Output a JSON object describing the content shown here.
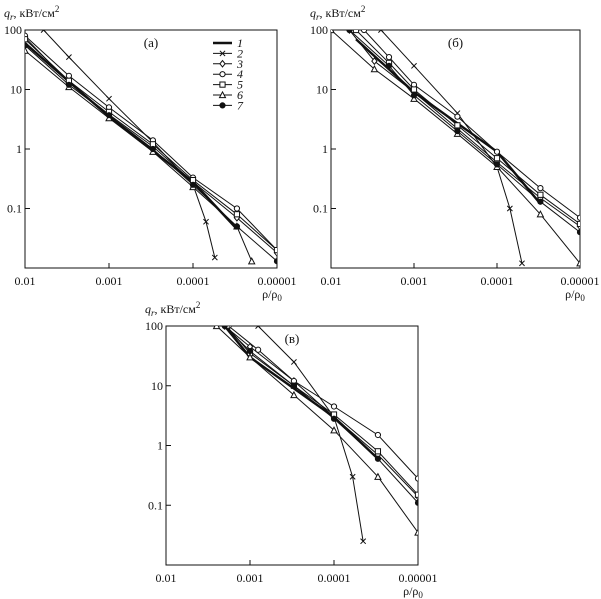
{
  "figure": {
    "y_axis_label_main": "q",
    "y_axis_label_sub": "r",
    "y_axis_label_unit": ", кВт/см",
    "y_axis_label_sup": "2",
    "x_axis_label": "ρ/ρ",
    "x_axis_label_sub": "0"
  },
  "legend": [
    "1",
    "2",
    "3",
    "4",
    "5",
    "6",
    "7"
  ],
  "chart_data": [
    {
      "type": "line",
      "panel": "(а)",
      "x_scale": "log (reversed)",
      "y_scale": "log",
      "xlim": [
        0.01,
        1e-05
      ],
      "ylim": [
        0.01,
        100
      ],
      "x_ticks": [
        "0.01",
        "0.001",
        "0.0001",
        "0.00001"
      ],
      "y_ticks": [
        "100",
        "10",
        "1",
        "0.1"
      ],
      "series": [
        {
          "name": "1",
          "marker": "none",
          "x": [
            0.01,
            0.001,
            0.0001,
            3e-05
          ],
          "y": [
            60,
            3.5,
            0.28,
            0.045
          ]
        },
        {
          "name": "2",
          "marker": "x",
          "x": [
            0.006,
            0.003,
            0.001,
            0.0003,
            0.0001,
            7e-05,
            5.5e-05
          ],
          "y": [
            100,
            35,
            7,
            1.3,
            0.25,
            0.06,
            0.015
          ]
        },
        {
          "name": "3",
          "marker": "diamond",
          "x": [
            0.01,
            0.003,
            0.001,
            0.0003,
            0.0001,
            3e-05,
            1e-05
          ],
          "y": [
            75,
            13,
            3.8,
            1.1,
            0.28,
            0.07,
            0.018
          ]
        },
        {
          "name": "4",
          "marker": "circle",
          "x": [
            0.01,
            0.003,
            0.001,
            0.0003,
            0.0001,
            3e-05,
            1e-05
          ],
          "y": [
            80,
            17,
            5,
            1.4,
            0.33,
            0.1,
            0.02
          ]
        },
        {
          "name": "5",
          "marker": "square",
          "x": [
            0.01,
            0.003,
            0.001,
            0.0003,
            0.0001,
            3e-05,
            1e-05
          ],
          "y": [
            70,
            14,
            4.2,
            1.2,
            0.3,
            0.08,
            0.02
          ]
        },
        {
          "name": "6",
          "marker": "triangle",
          "x": [
            0.01,
            0.003,
            0.001,
            0.0003,
            0.0001,
            3e-05,
            2e-05
          ],
          "y": [
            45,
            11,
            3.3,
            0.9,
            0.23,
            0.05,
            0.013
          ]
        },
        {
          "name": "7",
          "marker": "filled-circle",
          "x": [
            0.01,
            0.003,
            0.001,
            0.0003,
            0.0001,
            3e-05,
            1e-05
          ],
          "y": [
            55,
            12,
            3.7,
            1,
            0.25,
            0.05,
            0.013
          ]
        }
      ]
    },
    {
      "type": "line",
      "panel": "(б)",
      "x_scale": "log (reversed)",
      "y_scale": "log",
      "xlim": [
        0.01,
        1e-05
      ],
      "ylim": [
        0.01,
        100
      ],
      "x_ticks": [
        "0.01",
        "0.001",
        "0.0001",
        "0.00001"
      ],
      "y_ticks": [
        "100",
        "10",
        "1",
        "0.1"
      ],
      "series": [
        {
          "name": "1",
          "marker": "none",
          "x": [
            0.005,
            0.001,
            0.0001,
            3e-05
          ],
          "y": [
            70,
            9,
            0.9,
            0.12
          ]
        },
        {
          "name": "2",
          "marker": "x",
          "x": [
            0.0025,
            0.001,
            0.0003,
            0.0001,
            7e-05,
            5e-05
          ],
          "y": [
            100,
            25,
            4,
            0.5,
            0.1,
            0.012
          ]
        },
        {
          "name": "3",
          "marker": "diamond",
          "x": [
            0.006,
            0.003,
            0.001,
            0.0003,
            0.0001,
            3e-05,
            1e-05
          ],
          "y": [
            100,
            30,
            9,
            2.2,
            0.6,
            0.15,
            0.05
          ]
        },
        {
          "name": "4",
          "marker": "circle",
          "x": [
            0.004,
            0.002,
            0.001,
            0.0003,
            0.0001,
            3e-05,
            1e-05
          ],
          "y": [
            100,
            35,
            12,
            3.5,
            0.9,
            0.22,
            0.07
          ]
        },
        {
          "name": "5",
          "marker": "square",
          "x": [
            0.005,
            0.002,
            0.001,
            0.0003,
            0.0001,
            3e-05,
            1e-05
          ],
          "y": [
            100,
            28,
            10,
            2.5,
            0.7,
            0.17,
            0.055
          ]
        },
        {
          "name": "6",
          "marker": "triangle",
          "x": [
            0.01,
            0.003,
            0.001,
            0.0003,
            0.0001,
            3e-05,
            1e-05
          ],
          "y": [
            100,
            22,
            7,
            1.8,
            0.5,
            0.08,
            0.012
          ]
        },
        {
          "name": "7",
          "marker": "filled-circle",
          "x": [
            0.006,
            0.002,
            0.001,
            0.0003,
            0.0001,
            3e-05,
            1e-05
          ],
          "y": [
            100,
            25,
            8,
            2,
            0.55,
            0.13,
            0.04
          ]
        }
      ]
    },
    {
      "type": "line",
      "panel": "(в)",
      "x_scale": "log (reversed)",
      "y_scale": "log",
      "xlim": [
        0.01,
        1e-05
      ],
      "ylim": [
        0.01,
        100
      ],
      "x_ticks": [
        "0.01",
        "0.001",
        "0.0001",
        "0.00001"
      ],
      "y_ticks": [
        "100",
        "10",
        "1",
        "0.1"
      ],
      "series": [
        {
          "name": "1",
          "marker": "none",
          "x": [
            0.002,
            0.001,
            0.0001,
            3e-05
          ],
          "y": [
            100,
            30,
            3,
            0.6
          ]
        },
        {
          "name": "2",
          "marker": "x",
          "x": [
            0.0008,
            0.0003,
            0.0001,
            6e-05,
            4.5e-05
          ],
          "y": [
            100,
            25,
            3,
            0.3,
            0.025
          ]
        },
        {
          "name": "3",
          "marker": "diamond",
          "x": [
            0.002,
            0.001,
            0.0003,
            0.0001,
            3e-05,
            1e-05
          ],
          "y": [
            100,
            45,
            12,
            3,
            0.7,
            0.14
          ]
        },
        {
          "name": "4",
          "marker": "circle",
          "x": [
            0.0018,
            0.0008,
            0.0003,
            0.0001,
            3e-05,
            1e-05
          ],
          "y": [
            100,
            40,
            12,
            4.5,
            1.5,
            0.28
          ]
        },
        {
          "name": "5",
          "marker": "square",
          "x": [
            0.0019,
            0.001,
            0.0003,
            0.0001,
            3e-05,
            1e-05
          ],
          "y": [
            100,
            35,
            10,
            3.3,
            0.8,
            0.15
          ]
        },
        {
          "name": "6",
          "marker": "triangle",
          "x": [
            0.0025,
            0.001,
            0.0003,
            0.0001,
            3e-05,
            1e-05
          ],
          "y": [
            100,
            30,
            7,
            1.8,
            0.3,
            0.035
          ]
        },
        {
          "name": "7",
          "marker": "filled-circle",
          "x": [
            0.002,
            0.001,
            0.0003,
            0.0001,
            3e-05,
            1e-05
          ],
          "y": [
            100,
            38,
            10,
            2.8,
            0.6,
            0.11
          ]
        }
      ]
    }
  ]
}
